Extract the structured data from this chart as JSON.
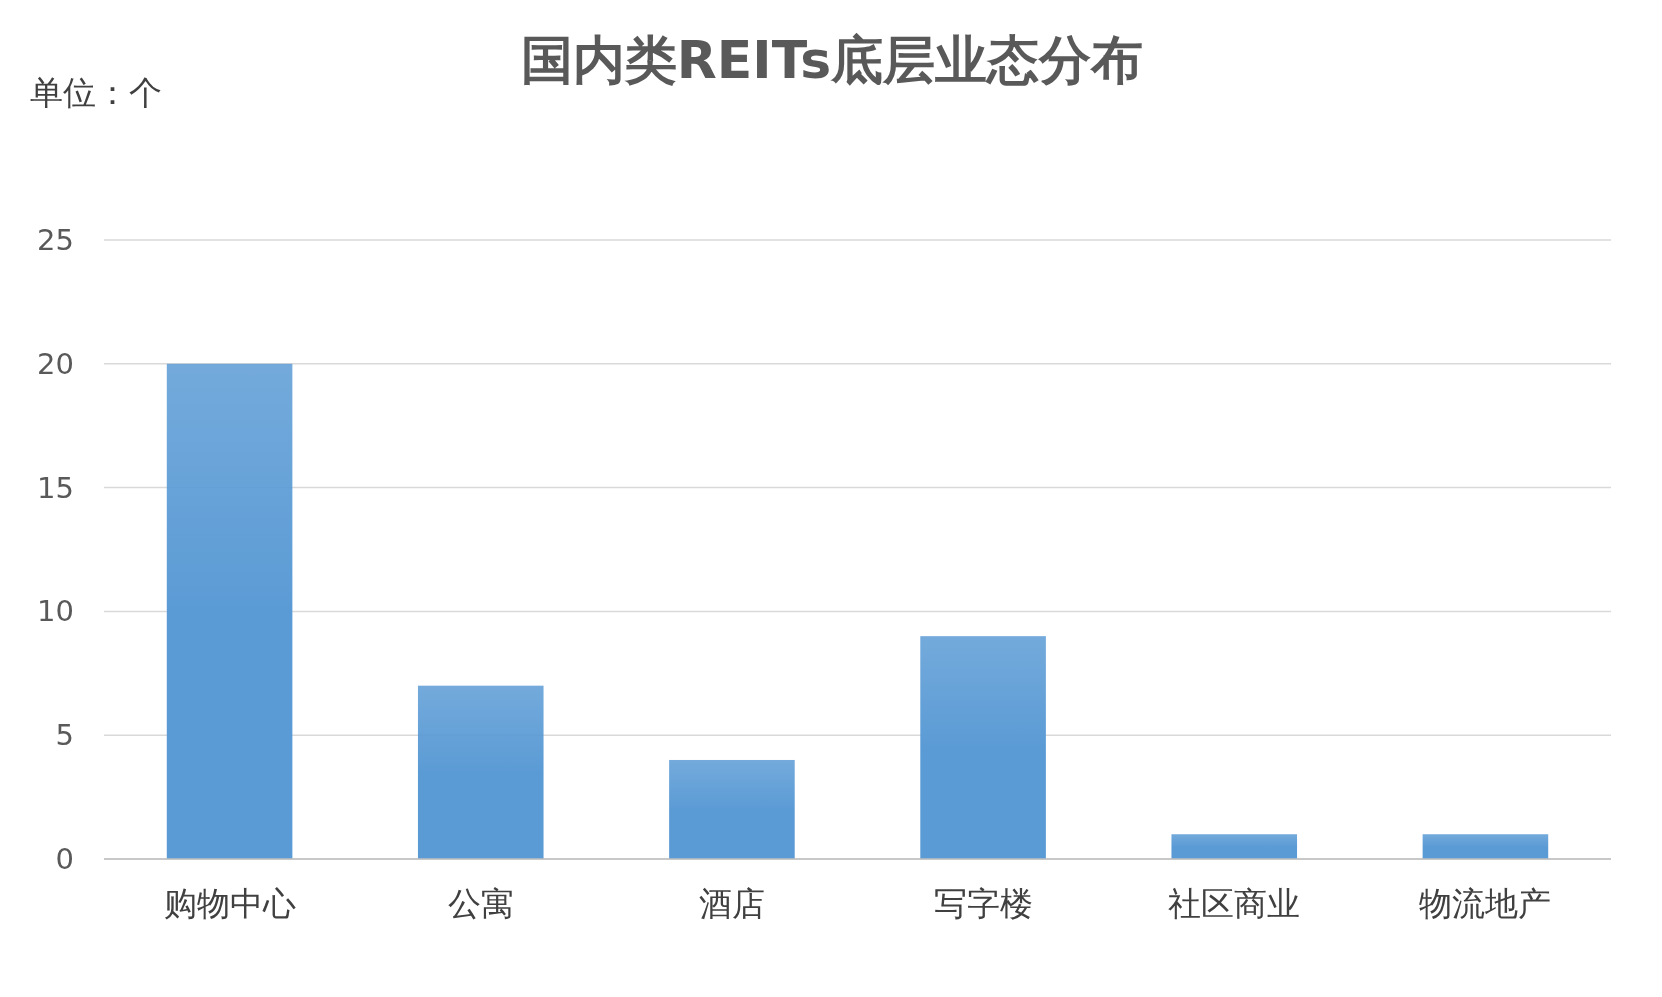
{
  "chart_data": {
    "type": "bar",
    "title": "国内类REITs底层业态分布",
    "annotations": [
      "单位：个"
    ],
    "categories": [
      "购物中心",
      "公寓",
      "酒店",
      "写字楼",
      "社区商业",
      "物流地产"
    ],
    "values": [
      20,
      7,
      4,
      9,
      1,
      1
    ],
    "color": "#5b9bd5",
    "ylim": [
      0,
      25
    ],
    "yticks": [
      0,
      5,
      10,
      15,
      20,
      25
    ],
    "grid": "y"
  }
}
